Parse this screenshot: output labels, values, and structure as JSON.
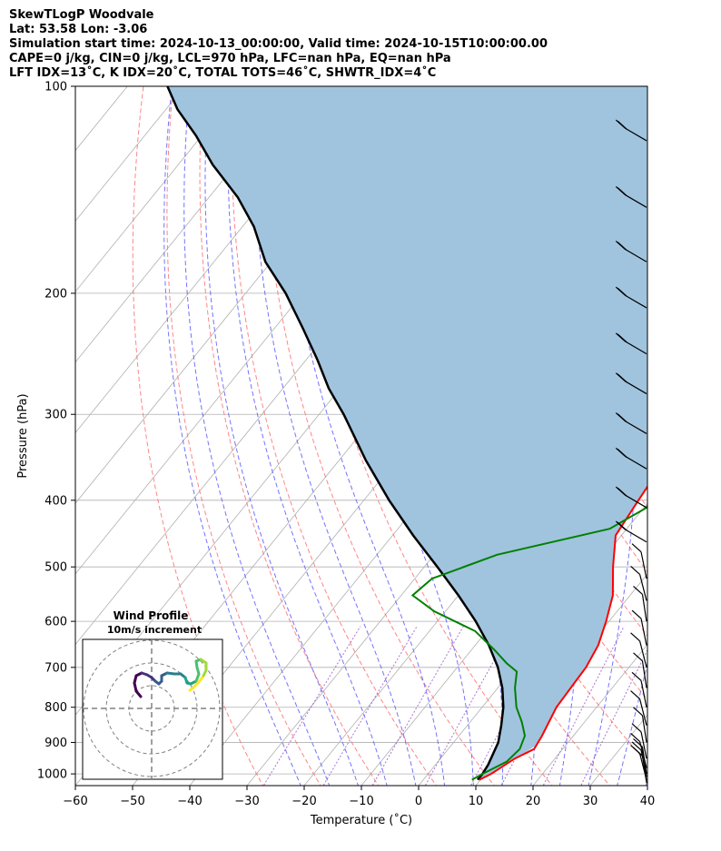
{
  "header": {
    "line1": "SkewTLogP Woodvale",
    "line2": "Lat: 53.58   Lon: -3.06",
    "line3": "Simulation start time: 2024-10-13_00:00:00, Valid time: 2024-10-15T10:00:00.00",
    "line4": "CAPE=0 j/kg, CIN=0 j/kg, LCL=970 hPa, LFC=nan hPa, EQ=nan hPa",
    "line5": "LFT IDX=13˚C, K IDX=20˚C, TOTAL TOTS=46˚C, SHWTR_IDX=4˚C"
  },
  "chart_data": {
    "type": "line",
    "xlabel": "Temperature (˚C)",
    "ylabel": "Pressure (hPa)",
    "xlim": [
      -60,
      40
    ],
    "ylim": [
      1040,
      100
    ],
    "y_scale": "log",
    "x_ticks": [
      "−60",
      "−50",
      "−40",
      "−30",
      "−20",
      "−10",
      "0",
      "10",
      "20",
      "30",
      "40"
    ],
    "y_ticks": [
      1000,
      900,
      800,
      700,
      600,
      500,
      400,
      300,
      200,
      100
    ],
    "grid": true,
    "skewed_isotherms": true,
    "colors": {
      "temperature": "#ff0000",
      "dewpoint": "#008000",
      "parcel": "#000000",
      "shading": "#a0c4de",
      "dry_adiabat": "#ff7070",
      "moist_adiabat": "#5a5aff",
      "mixing_ratio": "#9650c8"
    },
    "series": [
      {
        "key": "temperature",
        "points": [
          [
            9.8,
            1020
          ],
          [
            11,
            1000
          ],
          [
            13,
            950
          ],
          [
            15,
            920
          ],
          [
            14.5,
            880
          ],
          [
            13,
            800
          ],
          [
            12.5,
            700
          ],
          [
            11.5,
            650
          ],
          [
            9.5,
            600
          ],
          [
            7,
            550
          ],
          [
            3,
            500
          ],
          [
            -1,
            450
          ],
          [
            -2,
            400
          ],
          [
            -3,
            350
          ],
          [
            -4,
            300
          ],
          [
            -5,
            275
          ],
          [
            -7,
            250
          ],
          [
            -12,
            205
          ],
          [
            -14.5,
            190
          ],
          [
            -10,
            160
          ],
          [
            -6,
            140
          ],
          [
            -4,
            125
          ],
          [
            -1,
            110
          ],
          [
            1,
            100
          ]
        ],
        "name": ""
      },
      {
        "key": "dewpoint",
        "points": [
          [
            8.5,
            1020
          ],
          [
            9.5,
            1000
          ],
          [
            12,
            960
          ],
          [
            12.5,
            920
          ],
          [
            11.5,
            880
          ],
          [
            9,
            840
          ],
          [
            6,
            800
          ],
          [
            3,
            750
          ],
          [
            1,
            710
          ],
          [
            -2,
            690
          ],
          [
            -6,
            660
          ],
          [
            -12,
            620
          ],
          [
            -22,
            580
          ],
          [
            -28,
            550
          ],
          [
            -27,
            520
          ],
          [
            -19,
            480
          ],
          [
            -3,
            440
          ],
          [
            0.5,
            410
          ],
          [
            -1,
            380
          ],
          [
            -3.5,
            350
          ],
          [
            -6,
            320
          ],
          [
            -9,
            285
          ],
          [
            -12,
            255
          ],
          [
            -16,
            225
          ],
          [
            -20,
            200
          ],
          [
            -19.5,
            190
          ],
          [
            -19,
            180
          ],
          [
            -20,
            165
          ],
          [
            -21,
            150
          ],
          [
            -22,
            140
          ],
          [
            -22.5,
            130
          ],
          [
            -23,
            120
          ],
          [
            -24,
            110
          ],
          [
            -25,
            100
          ]
        ],
        "name": ""
      },
      {
        "key": "parcel",
        "points": [
          [
            9.5,
            1020
          ],
          [
            9.5,
            1000
          ],
          [
            9.2,
            970
          ],
          [
            7.8,
            900
          ],
          [
            5.9,
            850
          ],
          [
            3.7,
            800
          ],
          [
            0.8,
            750
          ],
          [
            -2.9,
            700
          ],
          [
            -7.6,
            650
          ],
          [
            -13.3,
            600
          ],
          [
            -20,
            550
          ],
          [
            -27.7,
            500
          ],
          [
            -36.4,
            450
          ],
          [
            -45.6,
            400
          ],
          [
            -55.3,
            350
          ],
          [
            -65.7,
            300
          ],
          [
            -72,
            275
          ],
          [
            -78,
            250
          ],
          [
            -85,
            225
          ],
          [
            -93,
            200
          ],
          [
            -101,
            180
          ],
          [
            -108,
            160
          ],
          [
            -115,
            145
          ],
          [
            -124,
            130
          ],
          [
            -131,
            118
          ],
          [
            -138,
            108
          ],
          [
            -143,
            100
          ]
        ],
        "name": ""
      }
    ],
    "hodograph": {
      "title": "Wind Profile",
      "subtitle": "10m/s increment",
      "rings_ms": [
        10,
        20,
        30
      ]
    }
  }
}
